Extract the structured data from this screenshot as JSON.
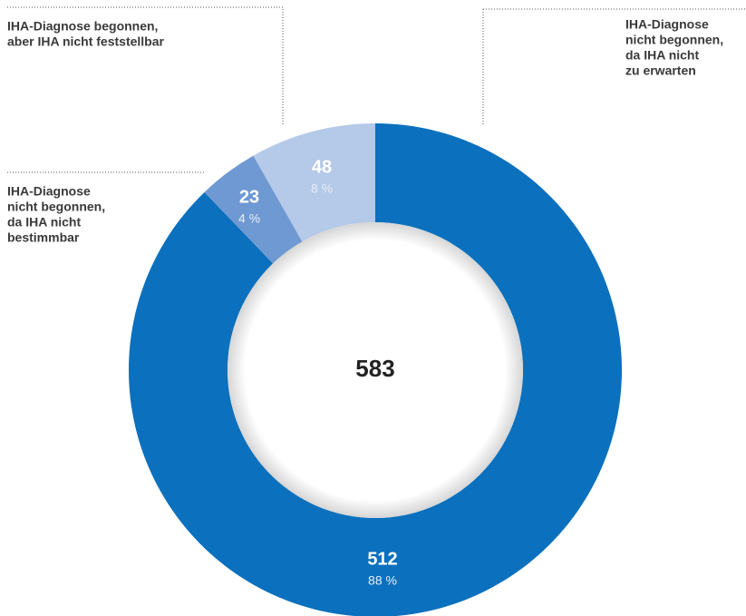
{
  "chart_data": {
    "type": "donut",
    "categories": [
      [
        "IHA-Diagnose",
        "nicht begonnen,",
        "da IHA nicht",
        "zu erwarten"
      ],
      [
        "IHA-Diagnose",
        "nicht begonnen,",
        "da IHA nicht",
        "bestimmbar"
      ],
      [
        "IHA-Diagnose begonnen,",
        "aber IHA nicht feststellbar"
      ]
    ],
    "values": [
      512,
      23,
      48
    ],
    "shares": {
      "values": [
        88,
        4,
        8
      ],
      "value_labels": [
        "88 %",
        "4 %",
        "8 %"
      ]
    },
    "colors": [
      "#0b70bd",
      "#6f99d3",
      "#b5c9e8"
    ],
    "total": 583
  }
}
